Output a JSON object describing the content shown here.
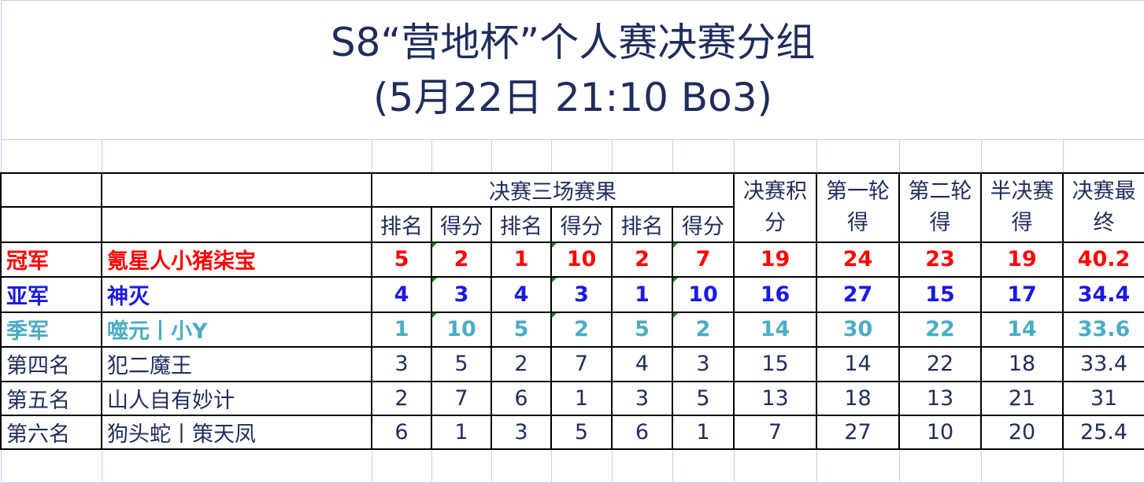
{
  "title": {
    "line1": "S8“营地杯”个人赛决赛分组",
    "line2": "(5月22日 21:10 Bo3)"
  },
  "headers": {
    "group": "决赛三场赛果",
    "sub": [
      "排名",
      "得分",
      "排名",
      "得分",
      "排名",
      "得分"
    ],
    "final_points": "决赛积分",
    "round1": "第一轮得",
    "round2": "第二轮得",
    "semi": "半决赛得",
    "final": "决赛最终"
  },
  "rows": [
    {
      "place": "冠军",
      "name": "氪星人小猪柒宝",
      "color": "#ff0000",
      "cells": [
        "5",
        "2",
        "1",
        "10",
        "2",
        "7",
        "19",
        "24",
        "23",
        "19",
        "40.2"
      ]
    },
    {
      "place": "亚军",
      "name": "神灭",
      "color": "#1a1adf",
      "cells": [
        "4",
        "3",
        "4",
        "3",
        "1",
        "10",
        "16",
        "27",
        "15",
        "17",
        "34.4"
      ]
    },
    {
      "place": "季军",
      "name": "噬元丨小Y",
      "color": "#4bacc6",
      "cells": [
        "1",
        "10",
        "5",
        "2",
        "5",
        "2",
        "14",
        "30",
        "22",
        "14",
        "33.6"
      ]
    },
    {
      "place": "第四名",
      "name": "犯二魔王",
      "cells": [
        "3",
        "5",
        "2",
        "7",
        "4",
        "3",
        "15",
        "14",
        "22",
        "18",
        "33.4"
      ]
    },
    {
      "place": "第五名",
      "name": "山人自有妙计",
      "cells": [
        "2",
        "7",
        "6",
        "1",
        "3",
        "5",
        "13",
        "18",
        "13",
        "21",
        "31"
      ]
    },
    {
      "place": "第六名",
      "name": "狗头蛇丨策天凤",
      "cells": [
        "6",
        "1",
        "3",
        "5",
        "6",
        "1",
        "7",
        "27",
        "10",
        "20",
        "25.4"
      ]
    }
  ]
}
